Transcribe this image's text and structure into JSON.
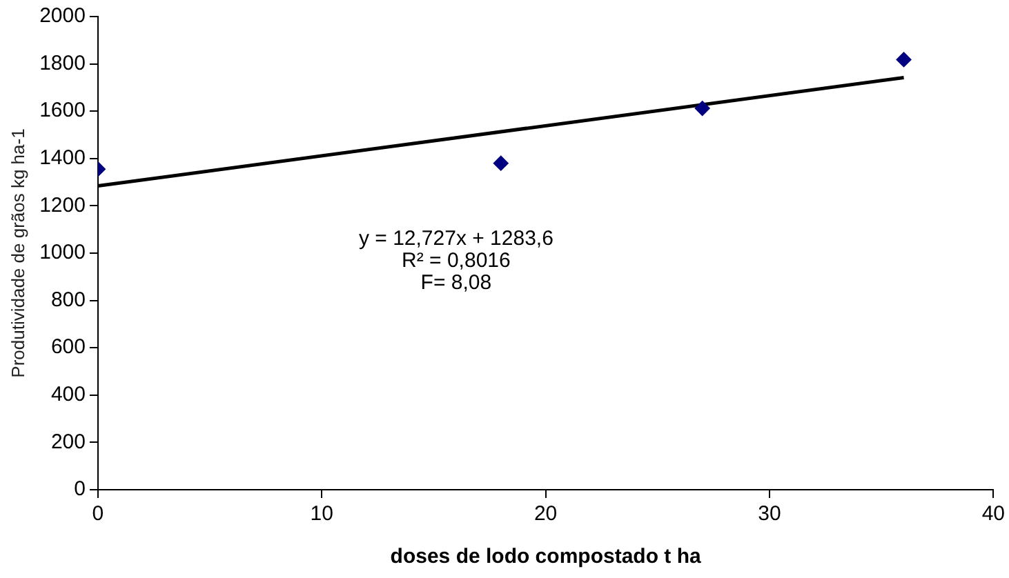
{
  "chart_data": {
    "type": "scatter",
    "xlabel": "doses de lodo compostado t ha",
    "ylabel": "Produtividade de grãos kg ha-1",
    "xlim": [
      0,
      40
    ],
    "xticks": [
      0,
      10,
      20,
      30,
      40
    ],
    "ylim": [
      0,
      2000
    ],
    "yticks": [
      0,
      200,
      400,
      600,
      800,
      1000,
      1200,
      1400,
      1600,
      1800,
      2000
    ],
    "grid": false,
    "legend": false,
    "marker": "diamond",
    "series": [
      {
        "type": "scatter",
        "color": "#000080",
        "x": [
          0,
          18,
          27,
          36
        ],
        "values": [
          1355,
          1380,
          1612,
          1818
        ]
      },
      {
        "type": "line",
        "color": "#000000",
        "x": [
          0,
          36
        ],
        "values": [
          1284,
          1742
        ],
        "marker": "none",
        "line_style": "solid"
      }
    ],
    "annotations": [
      "y = 12,727x + 1283,6",
      "R² = 0,8016",
      "F= 8,08"
    ]
  }
}
